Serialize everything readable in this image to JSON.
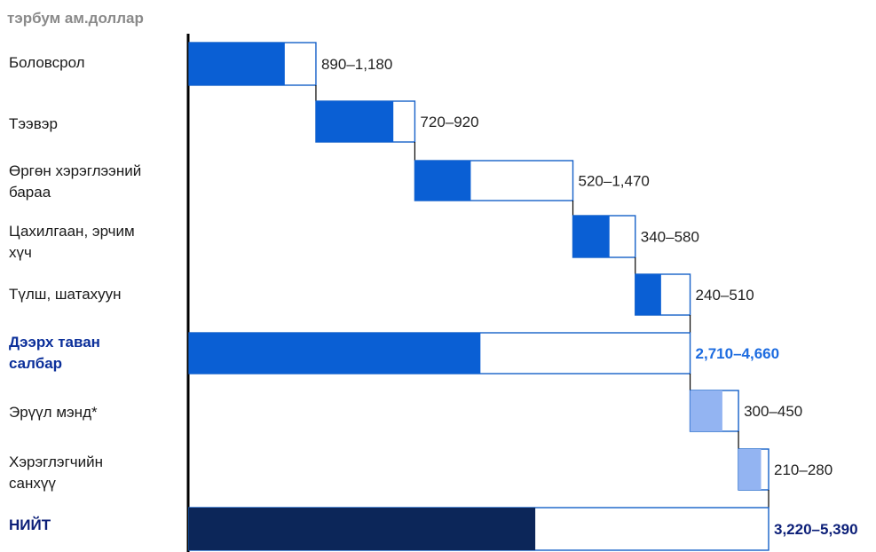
{
  "chart_data": {
    "type": "bar",
    "subtype": "waterfall-range",
    "unit_label": "тэрбум ам.доллар",
    "categories": [
      {
        "label": "Боловсрол",
        "low": 890,
        "high": 1180,
        "range_label": "890–1,180",
        "kind": "sector"
      },
      {
        "label": "Тээвэр",
        "low": 720,
        "high": 920,
        "range_label": "720–920",
        "kind": "sector"
      },
      {
        "label": "Өргөн хэрэглээний бараа",
        "low": 520,
        "high": 1470,
        "range_label": "520–1,470",
        "kind": "sector"
      },
      {
        "label": "Цахилгаан, эрчим хүч",
        "low": 340,
        "high": 580,
        "range_label": "340–580",
        "kind": "sector"
      },
      {
        "label": "Түлш, шатахуун",
        "low": 240,
        "high": 510,
        "range_label": "240–510",
        "kind": "sector"
      },
      {
        "label": "Дээрх таван салбар",
        "low": 2710,
        "high": 4660,
        "range_label": "2,710–4,660",
        "kind": "subtotal"
      },
      {
        "label": "Эрүүл мэнд*",
        "low": 300,
        "high": 450,
        "range_label": "300–450",
        "kind": "other"
      },
      {
        "label": "Хэрэглэгчийн санхүү",
        "low": 210,
        "high": 280,
        "range_label": "210–280",
        "kind": "other"
      },
      {
        "label": "НИЙТ",
        "low": 3220,
        "high": 5390,
        "range_label": "3,220–5,390",
        "kind": "total"
      }
    ],
    "colors": {
      "sector": "#0a5fd4",
      "subtotal": "#0a5fd4",
      "other": "#93b4f2",
      "total": "#0c2659",
      "outline": "#1560c8",
      "axis": "#000000"
    },
    "legend": "none",
    "grid": false
  }
}
